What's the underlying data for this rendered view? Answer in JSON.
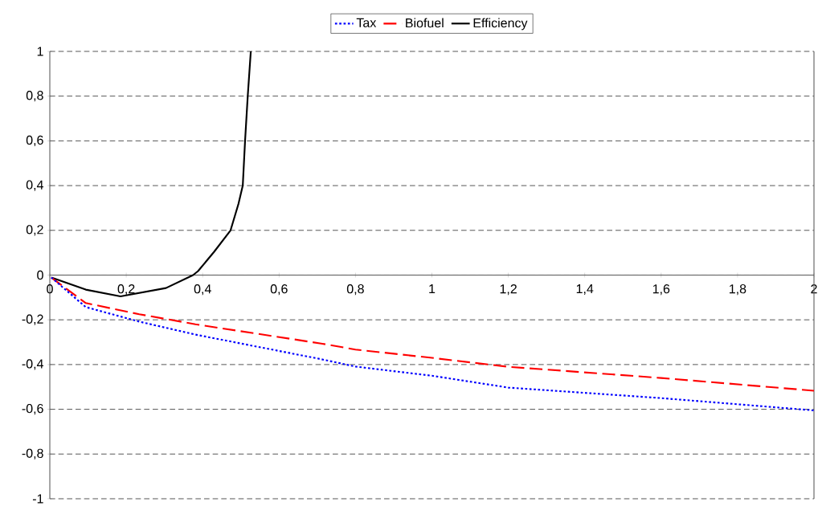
{
  "chart_data": {
    "type": "line",
    "xlim": [
      0,
      2
    ],
    "ylim": [
      -1,
      1
    ],
    "xticks": [
      0,
      {
        "value": 0.2,
        "label": "0,2"
      },
      {
        "value": 0.4,
        "label": "0,4"
      },
      {
        "value": 0.6,
        "label": "0,6"
      },
      {
        "value": 0.8,
        "label": "0,8"
      },
      1,
      {
        "value": 1.2,
        "label": "1,2"
      },
      {
        "value": 1.4,
        "label": "1,4"
      },
      {
        "value": 1.6,
        "label": "1,6"
      },
      {
        "value": 1.8,
        "label": "1,8"
      },
      2
    ],
    "yticks": [
      -1,
      {
        "value": -0.8,
        "label": "-0,8"
      },
      {
        "value": -0.6,
        "label": "-0,6"
      },
      {
        "value": -0.4,
        "label": "-0,4"
      },
      {
        "value": -0.2,
        "label": "-0,2"
      },
      0,
      {
        "value": 0.2,
        "label": "0,2"
      },
      {
        "value": 0.4,
        "label": "0,4"
      },
      {
        "value": 0.6,
        "label": "0,6"
      },
      {
        "value": 0.8,
        "label": "0,8"
      },
      1
    ],
    "grid": "y",
    "legend": "top",
    "marker": "none",
    "series": [
      {
        "name": "Tax",
        "color": "#0000ff",
        "line_style": "dotted",
        "x": [
          0.004,
          0.094,
          0.234,
          0.381,
          0.71,
          0.8,
          1.0,
          1.2,
          1.6,
          2.0
        ],
        "values": [
          -0.011,
          -0.143,
          -0.208,
          -0.266,
          -0.376,
          -0.409,
          -0.45,
          -0.503,
          -0.55,
          -0.605
        ]
      },
      {
        "name": "Biofuel",
        "color": "#ff0000",
        "line_style": "dashed",
        "x": [
          0.004,
          0.094,
          0.234,
          0.381,
          0.71,
          0.8,
          1.0,
          1.2,
          1.6,
          2.0
        ],
        "values": [
          -0.011,
          -0.125,
          -0.175,
          -0.22,
          -0.306,
          -0.333,
          -0.37,
          -0.41,
          -0.46,
          -0.517
        ]
      },
      {
        "name": "Efficiency",
        "color": "#000000",
        "line_style": "solid",
        "x": [
          0.004,
          0.094,
          0.185,
          0.304,
          0.375,
          0.388,
          0.43,
          0.473,
          0.494,
          0.505,
          0.511,
          0.518,
          0.526
        ],
        "values": [
          -0.011,
          -0.065,
          -0.095,
          -0.058,
          0,
          0.018,
          0.104,
          0.2,
          0.32,
          0.4,
          0.6,
          0.8,
          1
        ]
      }
    ]
  }
}
